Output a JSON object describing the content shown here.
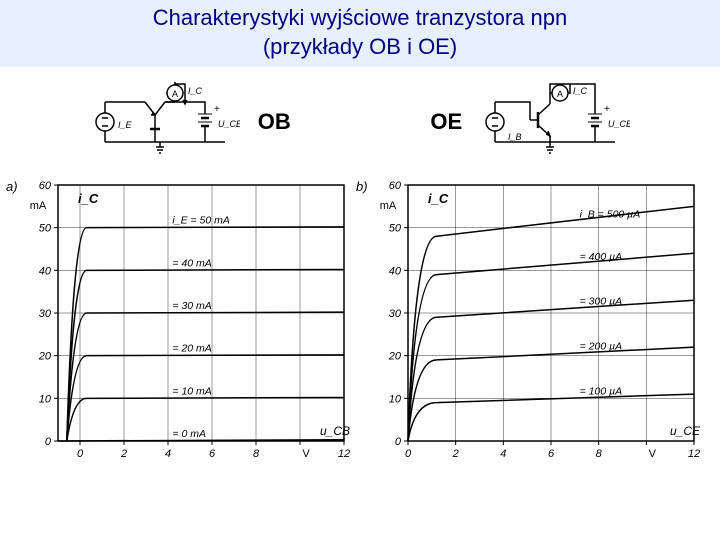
{
  "title": {
    "line1": "Charakterystyki wyjściowe tranzystora npn",
    "line2": "(przykłady OB i OE)"
  },
  "config_labels": {
    "ob": "OB",
    "oe": "OE"
  },
  "circuit_ob": {
    "ammeter_label": "A",
    "ic_label": "I_C",
    "ie_label": "I_E",
    "v_label": "U_CB",
    "plus": "+"
  },
  "circuit_oe": {
    "ammeter_label": "A",
    "ic_label": "I_C",
    "ib_label": "I_B",
    "v_label": "U_CE",
    "plus": "+"
  },
  "chart_ob": {
    "side_label": "a)",
    "y_axis_label": "i_C",
    "y_unit": "mA",
    "x_axis_label": "u_CB",
    "x_unit": "V",
    "ylim": [
      0,
      60
    ],
    "ytick_step": 10,
    "xlim": [
      -1,
      12
    ],
    "xtick_step": 2,
    "background": "#ffffff",
    "frame_color": "#000000",
    "grid_on": true,
    "axis_fontsize": 11,
    "line_width": 1.5,
    "line_color": "#000000",
    "curve_labels": [
      "i_E = 50 mA",
      "= 40 mA",
      "= 30 mA",
      "= 20 mA",
      "= 10 mA",
      "= 0 mA"
    ],
    "curves": [
      {
        "y_start": -3,
        "y_plateau": 50,
        "knee_x": -0.2,
        "label": "i_E = 50 mA"
      },
      {
        "y_start": -3,
        "y_plateau": 40,
        "knee_x": -0.2,
        "label": "= 40 mA"
      },
      {
        "y_start": -3,
        "y_plateau": 30,
        "knee_x": -0.2,
        "label": "= 30 mA"
      },
      {
        "y_start": -3,
        "y_plateau": 20,
        "knee_x": -0.2,
        "label": "= 20 mA"
      },
      {
        "y_start": -3,
        "y_plateau": 10,
        "knee_x": -0.2,
        "label": "= 10 mA"
      },
      {
        "y_start": -3,
        "y_plateau": 0,
        "knee_x": -0.2,
        "label": "= 0 mA"
      }
    ]
  },
  "chart_oe": {
    "side_label": "b)",
    "y_axis_label": "i_C",
    "y_unit": "mA",
    "x_axis_label": "u_CE",
    "x_unit": "V",
    "ylim": [
      0,
      60
    ],
    "ytick_step": 10,
    "xlim": [
      0,
      12
    ],
    "xtick_step": 2,
    "background": "#ffffff",
    "frame_color": "#000000",
    "grid_on": true,
    "axis_fontsize": 11,
    "line_width": 1.5,
    "line_color": "#000000",
    "curve_labels": [
      "i_B = 500 µA",
      "= 400 µA",
      "= 300 µA",
      "= 200 µA",
      "= 100 µA"
    ],
    "curves": [
      {
        "y_plateau_start": 48,
        "y_plateau_end": 55,
        "knee_x": 0.4,
        "label": "i_B = 500 µA"
      },
      {
        "y_plateau_start": 39,
        "y_plateau_end": 44,
        "knee_x": 0.4,
        "label": "= 400 µA"
      },
      {
        "y_plateau_start": 29,
        "y_plateau_end": 33,
        "knee_x": 0.4,
        "label": "= 300 µA"
      },
      {
        "y_plateau_start": 19,
        "y_plateau_end": 22,
        "knee_x": 0.4,
        "label": "= 200 µA"
      },
      {
        "y_plateau_start": 9,
        "y_plateau_end": 11,
        "knee_x": 0.4,
        "label": "= 100 µA"
      }
    ]
  }
}
